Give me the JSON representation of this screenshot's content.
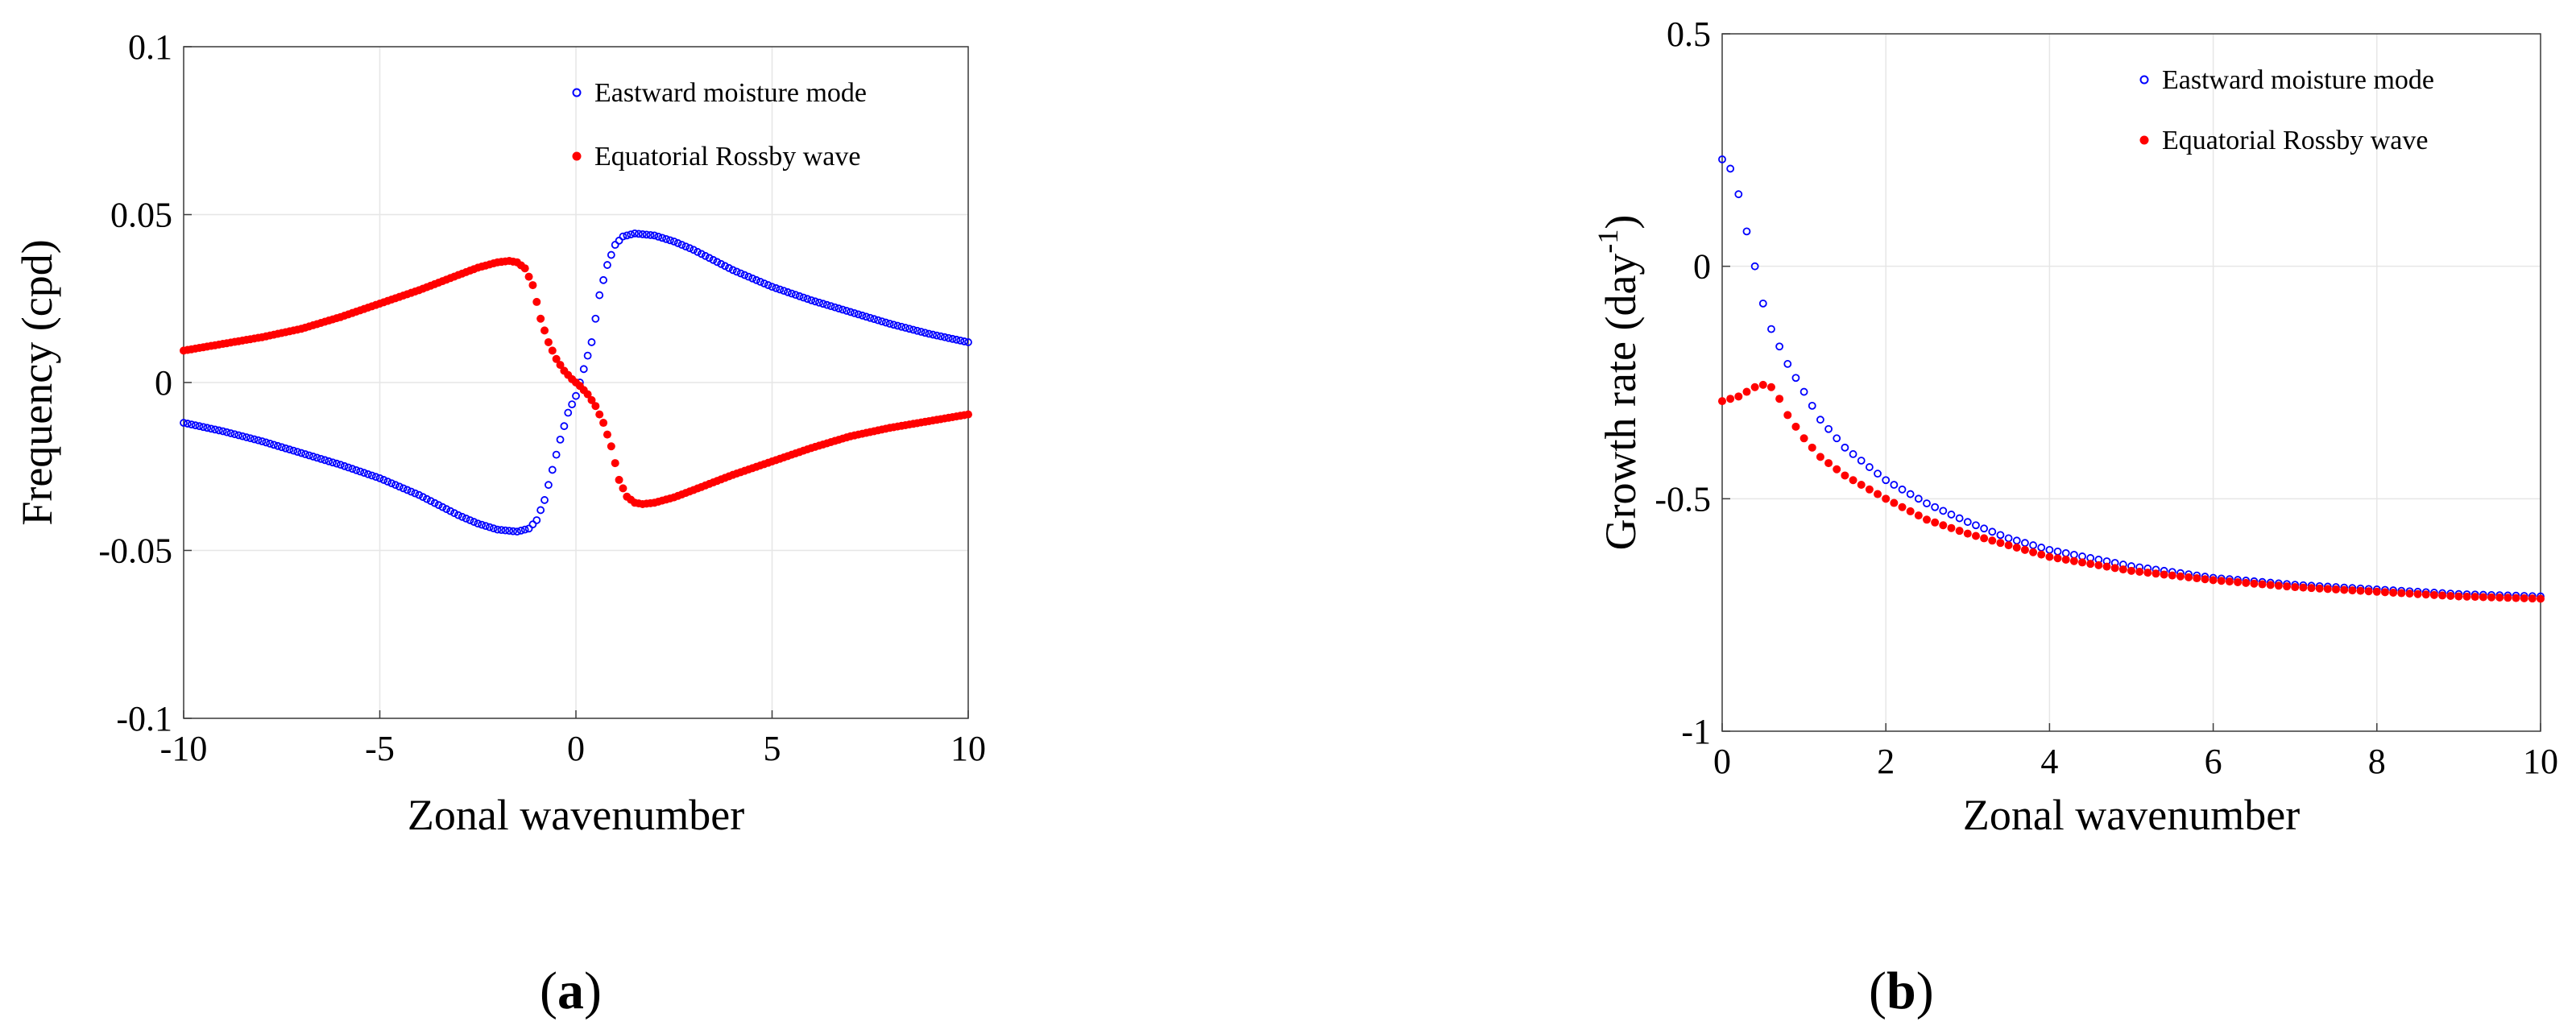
{
  "chart_data": [
    {
      "id": "a",
      "type": "scatter",
      "panel_label": "a",
      "xlabel": "Zonal wavenumber",
      "ylabel": "Frequency (cpd)",
      "xlim": [
        -10,
        10
      ],
      "ylim": [
        -0.1,
        0.1
      ],
      "xticks": [
        -10,
        -5,
        0,
        5,
        10
      ],
      "xtick_labels": [
        "-10",
        "-5",
        "0",
        "5",
        "10"
      ],
      "yticks": [
        -0.1,
        -0.05,
        0,
        0.05,
        0.1
      ],
      "ytick_labels": [
        "-0.1",
        "-0.05",
        "0",
        "0.05",
        "0.1"
      ],
      "grid": true,
      "legend_position": "top-right",
      "series": [
        {
          "name": "Eastward moisture mode",
          "marker": "open-circle",
          "color": "#0000ff",
          "x": [
            -10,
            -9,
            -8,
            -7,
            -6,
            -5,
            -4,
            -3,
            -2.5,
            -2,
            -1.5,
            -1.2,
            -1,
            -0.8,
            -0.6,
            -0.4,
            -0.2,
            0,
            0.2,
            0.4,
            0.6,
            0.8,
            1,
            1.2,
            1.5,
            2,
            2.5,
            3,
            4,
            5,
            6,
            7,
            8,
            9,
            10
          ],
          "y": [
            -0.012,
            -0.0145,
            -0.0175,
            -0.021,
            -0.0245,
            -0.0285,
            -0.0335,
            -0.0395,
            -0.042,
            -0.0438,
            -0.0444,
            -0.0435,
            -0.041,
            -0.035,
            -0.026,
            -0.017,
            -0.009,
            -0.004,
            0.004,
            0.012,
            0.026,
            0.035,
            0.041,
            0.0435,
            0.0444,
            0.0438,
            0.042,
            0.0395,
            0.0335,
            0.0285,
            0.0245,
            0.021,
            0.0175,
            0.0145,
            0.012
          ]
        },
        {
          "name": "Equatorial Rossby wave",
          "marker": "filled-circle",
          "color": "#ff0000",
          "x": [
            -10,
            -9,
            -8,
            -7,
            -6,
            -5,
            -4,
            -3,
            -2.5,
            -2,
            -1.7,
            -1.5,
            -1.3,
            -1.1,
            -0.9,
            -0.7,
            -0.5,
            -0.3,
            -0.1,
            0,
            0.1,
            0.3,
            0.5,
            0.7,
            0.9,
            1.1,
            1.3,
            1.5,
            1.7,
            2,
            2.5,
            3,
            4,
            5,
            6,
            7,
            8,
            9,
            10
          ],
          "y": [
            0.0095,
            0.0115,
            0.0135,
            0.016,
            0.0195,
            0.0235,
            0.0275,
            0.032,
            0.0342,
            0.0358,
            0.0362,
            0.0358,
            0.034,
            0.029,
            0.019,
            0.012,
            0.007,
            0.0035,
            0.001,
            0,
            -0.001,
            -0.0035,
            -0.007,
            -0.012,
            -0.019,
            -0.029,
            -0.034,
            -0.0358,
            -0.0362,
            -0.0358,
            -0.0342,
            -0.032,
            -0.0275,
            -0.0235,
            -0.0195,
            -0.016,
            -0.0135,
            -0.0115,
            -0.0095
          ]
        }
      ]
    },
    {
      "id": "b",
      "type": "scatter",
      "panel_label": "b",
      "xlabel": "Zonal wavenumber",
      "ylabel_main": "Growth rate (day",
      "ylabel_sup": "-1",
      "ylabel_end": ")",
      "xlim": [
        0,
        10
      ],
      "ylim": [
        -1,
        0.5
      ],
      "xticks": [
        0,
        2,
        4,
        6,
        8,
        10
      ],
      "xtick_labels": [
        "0",
        "2",
        "4",
        "6",
        "8",
        "10"
      ],
      "yticks": [
        -1,
        -0.5,
        0,
        0.5
      ],
      "ytick_labels": [
        "-1",
        "-0.5",
        "0",
        "0.5"
      ],
      "grid": true,
      "legend_position": "top-right",
      "series": [
        {
          "name": "Eastward moisture mode",
          "marker": "open-circle",
          "color": "#0000ff",
          "x": [
            0,
            0.1,
            0.2,
            0.3,
            0.4,
            0.5,
            0.6,
            0.8,
            1,
            1.2,
            1.5,
            2,
            2.5,
            3,
            3.5,
            4,
            5,
            6,
            7,
            8,
            9,
            10
          ],
          "y": [
            0.23,
            0.21,
            0.155,
            0.075,
            0,
            -0.08,
            -0.135,
            -0.21,
            -0.27,
            -0.33,
            -0.39,
            -0.46,
            -0.51,
            -0.55,
            -0.585,
            -0.61,
            -0.645,
            -0.67,
            -0.685,
            -0.695,
            -0.705,
            -0.71
          ]
        },
        {
          "name": "Equatorial Rossby wave",
          "marker": "filled-circle",
          "color": "#ff0000",
          "x": [
            0,
            0.1,
            0.2,
            0.3,
            0.4,
            0.5,
            0.6,
            0.7,
            0.8,
            1,
            1.2,
            1.5,
            2,
            2.5,
            3,
            3.5,
            4,
            5,
            6,
            7,
            8,
            9,
            10
          ],
          "y": [
            -0.29,
            -0.285,
            -0.28,
            -0.27,
            -0.26,
            -0.255,
            -0.26,
            -0.285,
            -0.32,
            -0.37,
            -0.41,
            -0.45,
            -0.5,
            -0.545,
            -0.575,
            -0.6,
            -0.625,
            -0.655,
            -0.675,
            -0.69,
            -0.7,
            -0.71,
            -0.715
          ]
        }
      ]
    }
  ]
}
